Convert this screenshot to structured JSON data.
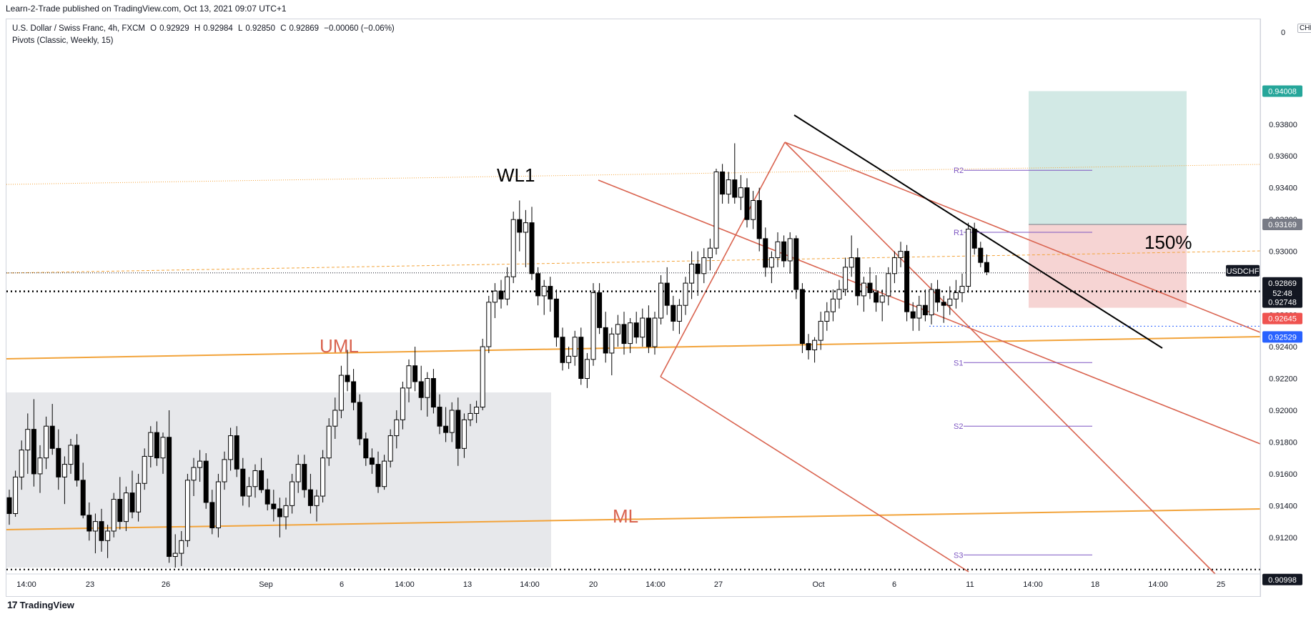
{
  "publisher_line": "Learn-2-Trade published on TradingView.com, Oct 13, 2021 09:07 UTC+1",
  "legend": {
    "symbol": "U.S. Dollar / Swiss Franc, 4h, FXCM",
    "open_label": "O",
    "open": "0.92929",
    "high_label": "H",
    "high": "0.92984",
    "low_label": "L",
    "low": "0.92850",
    "close_label": "C",
    "close": "0.92869",
    "change": "−0.00060 (−0.06%)",
    "indicator": "Pivots (Classic, Weekly, 15)"
  },
  "currency": "CHF",
  "logo_text": "TradingView",
  "colors": {
    "up_candle": "#ffffff",
    "down_candle": "#000000",
    "wick": "#000000",
    "pitchfork": "#d9634f",
    "orange_line": "#f2a33a",
    "trendline": "#000000",
    "pivot": "#7e57c2",
    "target_zone": "#d2e9e5",
    "stop_zone": "#f6d4d3",
    "range_box": "#e7e8eb"
  },
  "chart_data": {
    "type": "candlestick",
    "instrument": "USDCHF",
    "timeframe": "4h",
    "ylim": [
      0.9097,
      0.9446
    ],
    "y_ticks": [
      "0.93800",
      "0.93600",
      "0.93400",
      "0.93200",
      "0.93000",
      "0.92800",
      "0.92600",
      "0.92400",
      "0.92200",
      "0.92000",
      "0.91800",
      "0.91600",
      "0.91400",
      "0.91200"
    ],
    "y_top_tick": "0",
    "x_ticks": [
      "14:00",
      "23",
      "26",
      "Sep",
      "6",
      "14:00",
      "13",
      "14:00",
      "20",
      "14:00",
      "27",
      "Oct",
      "6",
      "11",
      "14:00",
      "18",
      "14:00",
      "25"
    ],
    "price_tags": [
      {
        "label": "0.94008",
        "color": "#26a69a",
        "text_color": "#ffffff"
      },
      {
        "label": "0.93169",
        "color": "#787b86",
        "text_color": "#ffffff"
      },
      {
        "label": "USDCHF",
        "color": "#131722",
        "text_color": "#ffffff"
      },
      {
        "label": "0.92869",
        "color": "#131722",
        "text_color": "#ffffff"
      },
      {
        "label": "52:48",
        "color": "#131722",
        "text_color": "#ffffff"
      },
      {
        "label": "0.92748",
        "color": "#131722",
        "text_color": "#ffffff"
      },
      {
        "label": "0.92645",
        "color": "#ef5350",
        "text_color": "#ffffff"
      },
      {
        "label": "0.92529",
        "color": "#2962ff",
        "text_color": "#ffffff"
      },
      {
        "label": "0.90998",
        "color": "#131722",
        "text_color": "#ffffff"
      }
    ],
    "annotations": {
      "wl1": "WL1",
      "uml": "UML",
      "ml": "ML",
      "pct": "150%"
    },
    "pivots": [
      {
        "name": "R2",
        "value": 0.9351
      },
      {
        "name": "R1",
        "value": 0.9312
      },
      {
        "name": "S1",
        "value": 0.923
      },
      {
        "name": "S2",
        "value": 0.919
      },
      {
        "name": "S3",
        "value": 0.9109
      }
    ],
    "levels": {
      "target": 0.94008,
      "entry": 0.93169,
      "stop": 0.92645,
      "last": 0.92869,
      "dotted_support": 0.92748,
      "blue_level": 0.92529,
      "bottom_level": 0.90998
    },
    "candles": [
      [
        0.9145,
        0.915,
        0.9128,
        0.9135
      ],
      [
        0.9135,
        0.9162,
        0.9133,
        0.9158
      ],
      [
        0.9158,
        0.9181,
        0.915,
        0.9175
      ],
      [
        0.9175,
        0.9198,
        0.916,
        0.9188
      ],
      [
        0.9188,
        0.9207,
        0.9152,
        0.916
      ],
      [
        0.916,
        0.9178,
        0.9148,
        0.917
      ],
      [
        0.917,
        0.9196,
        0.9163,
        0.919
      ],
      [
        0.919,
        0.9204,
        0.9172,
        0.9176
      ],
      [
        0.9176,
        0.9188,
        0.915,
        0.9158
      ],
      [
        0.9158,
        0.9171,
        0.9141,
        0.9166
      ],
      [
        0.9166,
        0.9182,
        0.916,
        0.9178
      ],
      [
        0.9178,
        0.9185,
        0.9152,
        0.9156
      ],
      [
        0.9156,
        0.9167,
        0.9132,
        0.9134
      ],
      [
        0.9134,
        0.9142,
        0.9118,
        0.9124
      ],
      [
        0.9124,
        0.9135,
        0.911,
        0.913
      ],
      [
        0.913,
        0.9138,
        0.9111,
        0.9118
      ],
      [
        0.9118,
        0.9128,
        0.9107,
        0.9124
      ],
      [
        0.9124,
        0.9148,
        0.912,
        0.9144
      ],
      [
        0.9144,
        0.9158,
        0.9125,
        0.913
      ],
      [
        0.913,
        0.9152,
        0.9124,
        0.9148
      ],
      [
        0.9148,
        0.9162,
        0.9132,
        0.9136
      ],
      [
        0.9136,
        0.916,
        0.913,
        0.9154
      ],
      [
        0.9154,
        0.9176,
        0.915,
        0.9171
      ],
      [
        0.9171,
        0.919,
        0.9164,
        0.9186
      ],
      [
        0.9186,
        0.9193,
        0.9165,
        0.917
      ],
      [
        0.917,
        0.9186,
        0.916,
        0.9183
      ],
      [
        0.9183,
        0.92,
        0.9104,
        0.9108
      ],
      [
        0.9108,
        0.9122,
        0.9101,
        0.911
      ],
      [
        0.911,
        0.9124,
        0.9102,
        0.9118
      ],
      [
        0.9118,
        0.916,
        0.9114,
        0.9156
      ],
      [
        0.9156,
        0.917,
        0.9146,
        0.9164
      ],
      [
        0.9164,
        0.9175,
        0.9155,
        0.9168
      ],
      [
        0.9168,
        0.9173,
        0.9138,
        0.9142
      ],
      [
        0.9142,
        0.915,
        0.9122,
        0.9126
      ],
      [
        0.9126,
        0.916,
        0.912,
        0.9155
      ],
      [
        0.9155,
        0.9174,
        0.915,
        0.9169
      ],
      [
        0.9169,
        0.9189,
        0.9162,
        0.9184
      ],
      [
        0.9184,
        0.919,
        0.9158,
        0.9163
      ],
      [
        0.9163,
        0.917,
        0.914,
        0.9146
      ],
      [
        0.9146,
        0.9158,
        0.9139,
        0.9152
      ],
      [
        0.9152,
        0.9166,
        0.9145,
        0.9162
      ],
      [
        0.9162,
        0.917,
        0.9148,
        0.915
      ],
      [
        0.915,
        0.9157,
        0.9137,
        0.9141
      ],
      [
        0.9141,
        0.915,
        0.913,
        0.9138
      ],
      [
        0.9138,
        0.9145,
        0.912,
        0.9133
      ],
      [
        0.9133,
        0.9145,
        0.9125,
        0.914
      ],
      [
        0.914,
        0.916,
        0.9135,
        0.9155
      ],
      [
        0.9155,
        0.9172,
        0.9148,
        0.9166
      ],
      [
        0.9166,
        0.9172,
        0.9145,
        0.915
      ],
      [
        0.915,
        0.916,
        0.9135,
        0.914
      ],
      [
        0.914,
        0.915,
        0.913,
        0.9146
      ],
      [
        0.9146,
        0.9175,
        0.9142,
        0.917
      ],
      [
        0.917,
        0.9195,
        0.9165,
        0.919
      ],
      [
        0.919,
        0.9208,
        0.9182,
        0.92
      ],
      [
        0.92,
        0.9228,
        0.9195,
        0.9222
      ],
      [
        0.9222,
        0.9238,
        0.9212,
        0.9218
      ],
      [
        0.9218,
        0.9226,
        0.92,
        0.9205
      ],
      [
        0.9205,
        0.921,
        0.9178,
        0.9182
      ],
      [
        0.9182,
        0.9186,
        0.9165,
        0.917
      ],
      [
        0.917,
        0.9176,
        0.916,
        0.9166
      ],
      [
        0.9166,
        0.9174,
        0.9148,
        0.9152
      ],
      [
        0.9152,
        0.9172,
        0.915,
        0.9168
      ],
      [
        0.9168,
        0.9188,
        0.9164,
        0.9184
      ],
      [
        0.9184,
        0.92,
        0.9176,
        0.9194
      ],
      [
        0.9194,
        0.9218,
        0.9188,
        0.9214
      ],
      [
        0.9214,
        0.9232,
        0.9205,
        0.9228
      ],
      [
        0.9228,
        0.924,
        0.9212,
        0.9218
      ],
      [
        0.9218,
        0.9228,
        0.92,
        0.9208
      ],
      [
        0.9208,
        0.9224,
        0.9196,
        0.922
      ],
      [
        0.922,
        0.9226,
        0.9198,
        0.9202
      ],
      [
        0.9202,
        0.921,
        0.9185,
        0.919
      ],
      [
        0.919,
        0.9202,
        0.918,
        0.9186
      ],
      [
        0.9186,
        0.9205,
        0.918,
        0.92
      ],
      [
        0.92,
        0.9208,
        0.9165,
        0.9176
      ],
      [
        0.9176,
        0.9198,
        0.917,
        0.9194
      ],
      [
        0.9194,
        0.9204,
        0.919,
        0.9198
      ],
      [
        0.9198,
        0.9206,
        0.9192,
        0.9202
      ],
      [
        0.9202,
        0.9245,
        0.92,
        0.924
      ],
      [
        0.924,
        0.9272,
        0.9236,
        0.9268
      ],
      [
        0.9268,
        0.928,
        0.9258,
        0.9275
      ],
      [
        0.9275,
        0.9282,
        0.9264,
        0.927
      ],
      [
        0.927,
        0.929,
        0.9266,
        0.9284
      ],
      [
        0.9284,
        0.9325,
        0.928,
        0.932
      ],
      [
        0.932,
        0.9332,
        0.93,
        0.9312
      ],
      [
        0.9312,
        0.9326,
        0.929,
        0.9318
      ],
      [
        0.9318,
        0.9328,
        0.9282,
        0.9286
      ],
      [
        0.9286,
        0.929,
        0.9266,
        0.9272
      ],
      [
        0.9272,
        0.9282,
        0.926,
        0.9278
      ],
      [
        0.9278,
        0.9284,
        0.9262,
        0.927
      ],
      [
        0.927,
        0.9276,
        0.924,
        0.9246
      ],
      [
        0.9246,
        0.9252,
        0.9225,
        0.923
      ],
      [
        0.923,
        0.924,
        0.9226,
        0.9234
      ],
      [
        0.9234,
        0.925,
        0.9228,
        0.9246
      ],
      [
        0.9246,
        0.9252,
        0.9216,
        0.922
      ],
      [
        0.922,
        0.9236,
        0.9214,
        0.9232
      ],
      [
        0.9232,
        0.928,
        0.9228,
        0.9274
      ],
      [
        0.9274,
        0.928,
        0.9248,
        0.9252
      ],
      [
        0.9252,
        0.9262,
        0.923,
        0.9236
      ],
      [
        0.9236,
        0.9252,
        0.9222,
        0.9248
      ],
      [
        0.9248,
        0.926,
        0.924,
        0.9254
      ],
      [
        0.9254,
        0.9262,
        0.9235,
        0.9242
      ],
      [
        0.9242,
        0.9258,
        0.9236,
        0.9255
      ],
      [
        0.9255,
        0.9262,
        0.9242,
        0.9246
      ],
      [
        0.9246,
        0.9264,
        0.924,
        0.9258
      ],
      [
        0.9258,
        0.9266,
        0.9236,
        0.924
      ],
      [
        0.924,
        0.9262,
        0.9235,
        0.9258
      ],
      [
        0.9258,
        0.9285,
        0.9254,
        0.928
      ],
      [
        0.928,
        0.929,
        0.926,
        0.9266
      ],
      [
        0.9266,
        0.9272,
        0.925,
        0.9256
      ],
      [
        0.9256,
        0.927,
        0.9248,
        0.9266
      ],
      [
        0.9266,
        0.9284,
        0.926,
        0.928
      ],
      [
        0.928,
        0.93,
        0.927,
        0.9292
      ],
      [
        0.9292,
        0.93,
        0.9272,
        0.9286
      ],
      [
        0.9286,
        0.9302,
        0.928,
        0.9296
      ],
      [
        0.9296,
        0.9308,
        0.9288,
        0.9302
      ],
      [
        0.9302,
        0.9352,
        0.9298,
        0.935
      ],
      [
        0.935,
        0.9355,
        0.933,
        0.9336
      ],
      [
        0.9336,
        0.935,
        0.933,
        0.9345
      ],
      [
        0.9345,
        0.9368,
        0.933,
        0.9334
      ],
      [
        0.9334,
        0.9348,
        0.9326,
        0.934
      ],
      [
        0.934,
        0.9346,
        0.9315,
        0.932
      ],
      [
        0.932,
        0.9338,
        0.9314,
        0.9332
      ],
      [
        0.9332,
        0.934,
        0.93,
        0.9308
      ],
      [
        0.9308,
        0.9315,
        0.9284,
        0.929
      ],
      [
        0.929,
        0.93,
        0.928,
        0.9296
      ],
      [
        0.9296,
        0.9312,
        0.929,
        0.9306
      ],
      [
        0.9306,
        0.931,
        0.929,
        0.9294
      ],
      [
        0.9294,
        0.9312,
        0.9286,
        0.9308
      ],
      [
        0.9308,
        0.931,
        0.927,
        0.9276
      ],
      [
        0.9276,
        0.928,
        0.9236,
        0.9242
      ],
      [
        0.9242,
        0.9248,
        0.9232,
        0.9238
      ],
      [
        0.9238,
        0.9246,
        0.923,
        0.9244
      ],
      [
        0.9244,
        0.9262,
        0.9238,
        0.9256
      ],
      [
        0.9256,
        0.9268,
        0.925,
        0.9262
      ],
      [
        0.9262,
        0.9276,
        0.9256,
        0.927
      ],
      [
        0.927,
        0.9282,
        0.9264,
        0.9276
      ],
      [
        0.9276,
        0.9296,
        0.9272,
        0.929
      ],
      [
        0.929,
        0.931,
        0.9284,
        0.9296
      ],
      [
        0.9296,
        0.9302,
        0.9266,
        0.9272
      ],
      [
        0.9272,
        0.9284,
        0.9262,
        0.928
      ],
      [
        0.928,
        0.929,
        0.927,
        0.9274
      ],
      [
        0.9274,
        0.9285,
        0.9262,
        0.9268
      ],
      [
        0.9268,
        0.9276,
        0.9256,
        0.9272
      ],
      [
        0.9272,
        0.929,
        0.9266,
        0.9286
      ],
      [
        0.9286,
        0.93,
        0.928,
        0.9296
      ],
      [
        0.9296,
        0.9306,
        0.929,
        0.93
      ],
      [
        0.93,
        0.9304,
        0.9256,
        0.9262
      ],
      [
        0.9262,
        0.9268,
        0.925,
        0.9258
      ],
      [
        0.9258,
        0.9272,
        0.925,
        0.9266
      ],
      [
        0.9266,
        0.9276,
        0.9256,
        0.926
      ],
      [
        0.926,
        0.928,
        0.9254,
        0.9276
      ],
      [
        0.9276,
        0.9282,
        0.9262,
        0.9268
      ],
      [
        0.9268,
        0.9272,
        0.9255,
        0.9266
      ],
      [
        0.9266,
        0.9278,
        0.926,
        0.927
      ],
      [
        0.927,
        0.9282,
        0.9264,
        0.9274
      ],
      [
        0.9274,
        0.9286,
        0.9268,
        0.9278
      ],
      [
        0.9278,
        0.9318,
        0.9274,
        0.9314
      ],
      [
        0.9314,
        0.9318,
        0.9298,
        0.9302
      ],
      [
        0.9302,
        0.9306,
        0.929,
        0.9293
      ],
      [
        0.9293,
        0.9298,
        0.9285,
        0.9287
      ]
    ]
  }
}
